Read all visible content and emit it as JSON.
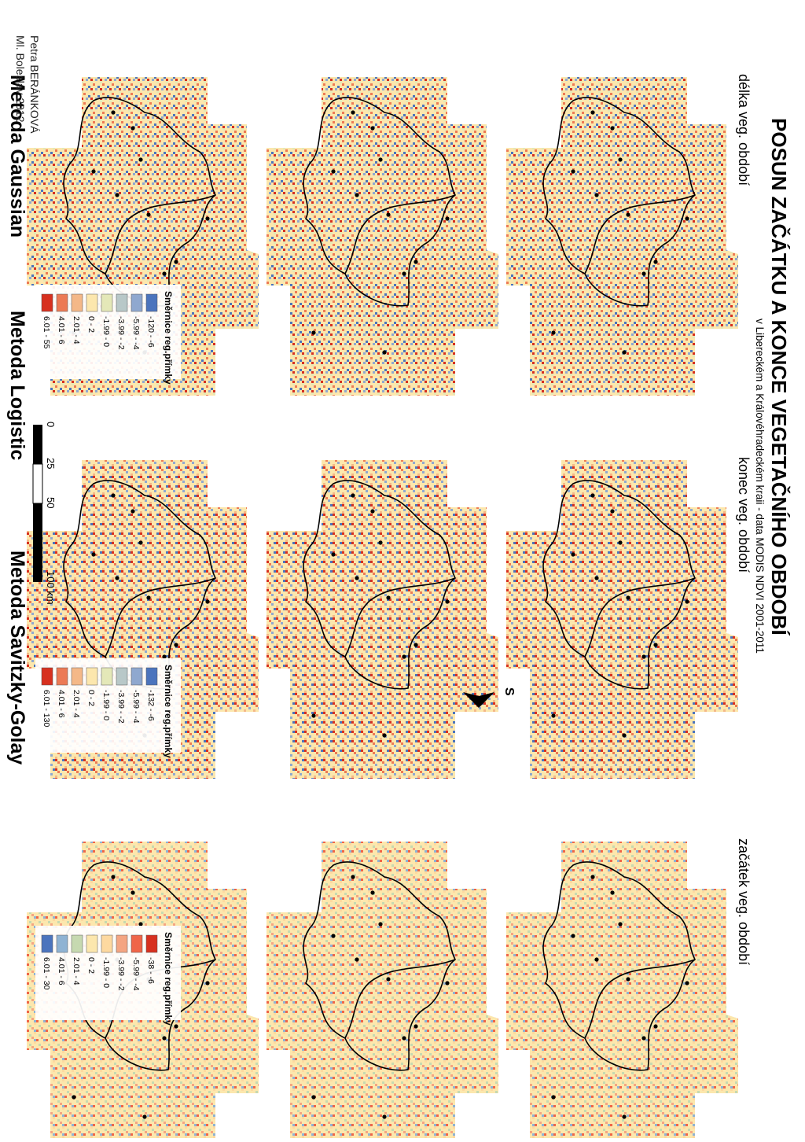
{
  "title": "POSUN ZAČÁTKU A KONCE VEGETAČNÍHO OBDOBÍ",
  "subtitle": "v Libereckém a Královéhradeckém kraji - data MODIS NDVI 2001-2011",
  "columns": [
    {
      "key": "start",
      "label": "začátek veg. období"
    },
    {
      "key": "end",
      "label": "konec veg. období"
    },
    {
      "key": "length",
      "label": "délka veg. období"
    }
  ],
  "methods": [
    {
      "key": "gaussian",
      "label": "Metoda Gaussian"
    },
    {
      "key": "logistic",
      "label": "Metoda Logistic"
    },
    {
      "key": "savitzky",
      "label": "Metoda Savitzky-Golay"
    }
  ],
  "north_label": "S",
  "legends": [
    {
      "key": "start",
      "title": "Směrnice reg.přímky",
      "items": [
        {
          "label": "-38 - -6",
          "color": "#d7301f"
        },
        {
          "label": "-5.99 - -4",
          "color": "#ef6548"
        },
        {
          "label": "-3.99 - -2",
          "color": "#f4a582"
        },
        {
          "label": "-1.99 - 0",
          "color": "#fdd9a0"
        },
        {
          "label": "0 - 2",
          "color": "#fce7ad"
        },
        {
          "label": "2.01 - 4",
          "color": "#c6d9b0"
        },
        {
          "label": "4.01 - 6",
          "color": "#8fb3d3"
        },
        {
          "label": "6.01 - 30",
          "color": "#4b74bd"
        }
      ]
    },
    {
      "key": "end",
      "title": "Směrnice reg.přímky",
      "items": [
        {
          "label": "-132 - -6",
          "color": "#4b74bd"
        },
        {
          "label": "-5.99 - -4",
          "color": "#8fa8cf"
        },
        {
          "label": "-3.99 - -2",
          "color": "#b8c8c8"
        },
        {
          "label": "-1.99 - 0",
          "color": "#e4e8b8"
        },
        {
          "label": "0 - 2",
          "color": "#fce7ad"
        },
        {
          "label": "2.01 - 4",
          "color": "#f4b888"
        },
        {
          "label": "4.01 - 6",
          "color": "#ec7a55"
        },
        {
          "label": "6.01 - 130",
          "color": "#d7301f"
        }
      ]
    },
    {
      "key": "length",
      "title": "Směrnice reg.přímky",
      "items": [
        {
          "label": "-120 - -6",
          "color": "#4b74bd"
        },
        {
          "label": "-5.99 - -4",
          "color": "#8fa8cf"
        },
        {
          "label": "-3.99 - -2",
          "color": "#b8c8c8"
        },
        {
          "label": "-1.99 - 0",
          "color": "#e4e8b8"
        },
        {
          "label": "0 - 2",
          "color": "#fce7ad"
        },
        {
          "label": "2.01 - 4",
          "color": "#f4b888"
        },
        {
          "label": "4.01 - 6",
          "color": "#ec7a55"
        },
        {
          "label": "6.01 - 55",
          "color": "#d7301f"
        }
      ]
    }
  ],
  "scalebar": {
    "ticks": [
      "0",
      "25",
      "50",
      "100 km"
    ]
  },
  "credit": {
    "line1": "Petra BERÁNKOVÁ",
    "line2": "Ml. Boleslav 2012"
  },
  "colors": {
    "base": "#fce7ad",
    "boundary": "#000000",
    "dot": "#000000"
  },
  "patterns": {
    "start": [
      "#fce7ad",
      "#fce7ad",
      "#fce7ad",
      "#fdd9a0",
      "#f4a582",
      "#c6d9b0",
      "#ef6548",
      "#8fb3d3"
    ],
    "end": [
      "#fce7ad",
      "#fce7ad",
      "#e4e8b8",
      "#8fa8cf",
      "#4b74bd",
      "#f4b888",
      "#ec7a55",
      "#d7301f"
    ],
    "length": [
      "#fce7ad",
      "#fce7ad",
      "#f4b888",
      "#e4e8b8",
      "#8fa8cf",
      "#4b74bd",
      "#ec7a55",
      "#d7301f"
    ]
  }
}
